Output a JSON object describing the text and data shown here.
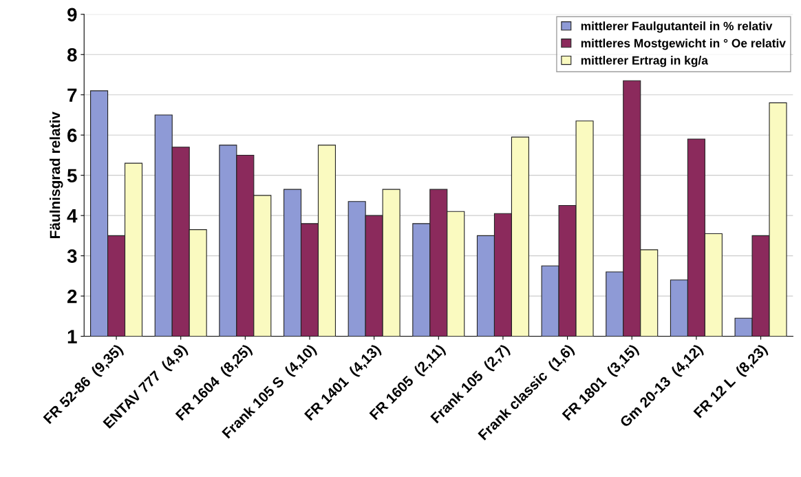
{
  "chart_data": {
    "type": "bar",
    "ylabel": "Fäulnisgrad relativ",
    "categories": [
      "FR 52-86  (9,35)",
      "ENTAV 777  (4,9)",
      "FR 1604  (8,25)",
      "Frank 105 S  (4,10)",
      "FR 1401  (4,13)",
      "FR 1605  (2,11)",
      "Frank 105  (2,7)",
      "Frank classic  (1,6)",
      "FR 1801  (3,15)",
      "Gm 20-13  (4,12)",
      "FR 12 L  (8,23)"
    ],
    "series": [
      {
        "name": "mittlerer Faulgutanteil in % relativ",
        "color": "#8e9ad6",
        "values": [
          7.1,
          6.5,
          5.75,
          4.65,
          4.35,
          3.8,
          3.5,
          2.75,
          2.6,
          2.4,
          1.45
        ]
      },
      {
        "name": "mittleres Mostgewicht in ° Oe relativ",
        "color": "#8b2a5c",
        "values": [
          3.5,
          5.7,
          5.5,
          3.8,
          4.0,
          4.65,
          4.05,
          4.25,
          7.35,
          5.9,
          3.5
        ]
      },
      {
        "name": "mittlerer Ertrag in kg/a",
        "color": "#fafac0",
        "values": [
          5.3,
          3.65,
          4.5,
          5.75,
          4.65,
          4.1,
          5.95,
          6.35,
          3.15,
          3.55,
          6.8
        ]
      }
    ],
    "ylim": [
      1,
      9
    ],
    "yticks": [
      1,
      2,
      3,
      4,
      5,
      6,
      7,
      8,
      9
    ],
    "grid": "y",
    "legend": "top right"
  }
}
